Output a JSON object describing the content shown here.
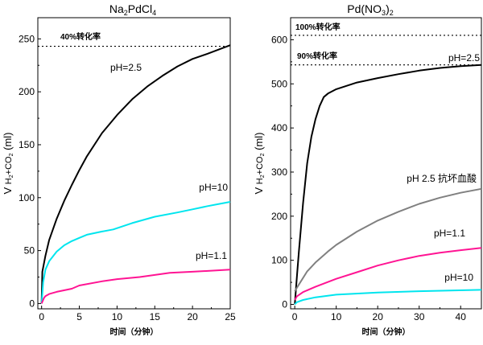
{
  "chart_data": [
    {
      "type": "line",
      "title": "Na2PdCl4",
      "title_main": "Na",
      "title_parts": [
        "Na",
        "2",
        "PdCl",
        "4"
      ],
      "xlabel": "时间（分钟）",
      "ylabel": "V H2+CO2 (ml)",
      "xlim": [
        -0.5,
        25
      ],
      "ylim": [
        -5,
        270
      ],
      "xticks": [
        0,
        5,
        10,
        15,
        20,
        25
      ],
      "yticks": [
        0,
        50,
        100,
        150,
        200,
        250
      ],
      "grid": false,
      "reference_lines": [
        {
          "y": 243,
          "label": "40%转化率",
          "style": "dotted"
        }
      ],
      "series": [
        {
          "name": "pH=2.5",
          "color": "#000000",
          "x": [
            0,
            0.1,
            0.5,
            1,
            2,
            3,
            4,
            5,
            6,
            8,
            10,
            12,
            14,
            16,
            18,
            20,
            22,
            25
          ],
          "y": [
            0,
            30,
            45,
            60,
            80,
            97,
            112,
            126,
            139,
            161,
            178,
            193,
            205,
            215,
            224,
            231,
            236,
            244
          ]
        },
        {
          "name": "pH=10",
          "color": "#00e5ee",
          "x": [
            0,
            0.2,
            0.5,
            1,
            2,
            3,
            4,
            5,
            6,
            8,
            9.5,
            12,
            15,
            18,
            20,
            22,
            25
          ],
          "y": [
            0,
            20,
            32,
            40,
            49,
            55,
            59,
            62,
            65,
            68,
            70,
            76,
            82,
            86,
            89,
            92,
            96
          ]
        },
        {
          "name": "pH=1.1",
          "color": "#ff1493",
          "x": [
            0,
            0.3,
            0.5,
            1,
            2,
            4,
            5,
            8,
            10,
            13,
            15,
            17,
            20,
            25
          ],
          "y": [
            0,
            5,
            7,
            9,
            11,
            14,
            17,
            21,
            23,
            25,
            27,
            29,
            30,
            32
          ]
        }
      ]
    },
    {
      "type": "line",
      "title": "Pd(NO3)2",
      "title_parts": [
        "Pd(NO",
        "3",
        ")",
        "2"
      ],
      "xlabel": "时间（分钟）",
      "ylabel": "V H2+CO2 (ml)",
      "xlim": [
        -1,
        45
      ],
      "ylim": [
        -10,
        650
      ],
      "xticks": [
        0,
        10,
        20,
        30,
        40
      ],
      "yticks": [
        0,
        100,
        200,
        300,
        400,
        500,
        600
      ],
      "grid": false,
      "reference_lines": [
        {
          "y": 610,
          "label": "100%转化率",
          "style": "dotted"
        },
        {
          "y": 543,
          "label": "90%转化率",
          "style": "dotted"
        }
      ],
      "series": [
        {
          "name": "pH=2.5",
          "color": "#000000",
          "x": [
            0,
            0.5,
            1,
            2,
            3,
            4,
            5,
            6,
            7,
            8,
            10,
            15,
            20,
            25,
            30,
            35,
            40,
            45
          ],
          "y": [
            0,
            60,
            120,
            230,
            320,
            380,
            420,
            450,
            470,
            478,
            488,
            503,
            513,
            522,
            530,
            536,
            540,
            543
          ]
        },
        {
          "name": "pH 2.5 抗坏血酸",
          "color": "#808080",
          "x": [
            0,
            1,
            3,
            5,
            8,
            10,
            15,
            20,
            25,
            30,
            35,
            40,
            45
          ],
          "y": [
            30,
            45,
            75,
            95,
            120,
            135,
            165,
            190,
            210,
            228,
            242,
            253,
            262
          ]
        },
        {
          "name": "pH=1.1",
          "color": "#ff1493",
          "x": [
            0,
            0.5,
            2,
            5,
            10,
            15,
            20,
            25,
            30,
            35,
            40,
            45
          ],
          "y": [
            10,
            18,
            28,
            40,
            58,
            73,
            88,
            100,
            110,
            117,
            123,
            128
          ]
        },
        {
          "name": "pH=10",
          "color": "#00e5ee",
          "x": [
            0,
            0.5,
            2,
            5,
            10,
            20,
            30,
            45
          ],
          "y": [
            0,
            5,
            10,
            16,
            22,
            27,
            30,
            33
          ]
        }
      ]
    }
  ]
}
